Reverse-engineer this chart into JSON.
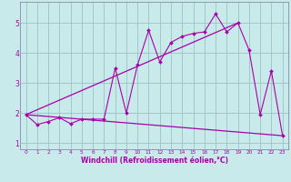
{
  "xlabel": "Windchill (Refroidissement éolien,°C)",
  "bg_color": "#c8eaea",
  "grid_color": "#a0c8c8",
  "line_color": "#aa00aa",
  "spine_color": "#8888aa",
  "xlim": [
    -0.5,
    23.5
  ],
  "ylim": [
    0.8,
    5.7
  ],
  "xticks": [
    0,
    1,
    2,
    3,
    4,
    5,
    6,
    7,
    8,
    9,
    10,
    11,
    12,
    13,
    14,
    15,
    16,
    17,
    18,
    19,
    20,
    21,
    22,
    23
  ],
  "yticks": [
    1,
    2,
    3,
    4,
    5
  ],
  "line1_x": [
    0,
    1,
    2,
    3,
    4,
    5,
    6,
    7,
    8,
    9,
    10,
    11,
    12,
    13,
    14,
    15,
    16,
    17,
    18,
    19,
    20,
    21,
    22,
    23
  ],
  "line1_y": [
    1.95,
    1.62,
    1.72,
    1.85,
    1.65,
    1.8,
    1.8,
    1.8,
    3.5,
    2.0,
    3.6,
    4.75,
    3.7,
    4.35,
    4.55,
    4.65,
    4.7,
    5.3,
    4.7,
    5.0,
    4.1,
    1.95,
    3.4,
    1.25
  ],
  "line2_x": [
    0,
    19
  ],
  "line2_y": [
    1.95,
    5.0
  ],
  "line3_x": [
    0,
    23
  ],
  "line3_y": [
    1.95,
    1.25
  ],
  "xlabel_fontsize": 5.5,
  "tick_fontsize_x": 4.2,
  "tick_fontsize_y": 5.5
}
